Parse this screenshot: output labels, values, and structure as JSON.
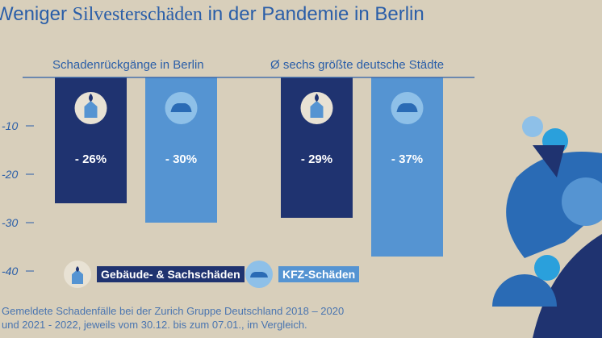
{
  "chart_data": {
    "type": "bar",
    "title_plain": "Weniger",
    "title_serif": "Silvesterschäden",
    "title_rest": "in der Pandemie in Berlin",
    "groups": [
      "Schadenrückgänge in Berlin",
      "Ø sechs größte deutsche Städte"
    ],
    "series": [
      {
        "name": "Gebäude- & Sachschäden",
        "color": "#1f3370",
        "icon": "house-fire-icon",
        "values": [
          -26,
          -29
        ],
        "labels": [
          "- 26%",
          "- 29%"
        ]
      },
      {
        "name": "KFZ-Schäden",
        "color": "#5594d2",
        "icon": "car-icon",
        "values": [
          -30,
          -37
        ],
        "labels": [
          "- 30%",
          "- 37%"
        ]
      }
    ],
    "yticks": [
      -10,
      -20,
      -30,
      -40
    ],
    "ytick_labels": [
      "-10",
      "-20",
      "-30",
      "-40"
    ],
    "ylim": [
      -40,
      0
    ]
  },
  "footnote": [
    "Gemeldete Schadenfälle bei der Zurich Gruppe Deutschland 2018 – 2020",
    "und 2021 - 2022, jeweils vom 30.12. bis zum 07.01., im Vergleich."
  ]
}
